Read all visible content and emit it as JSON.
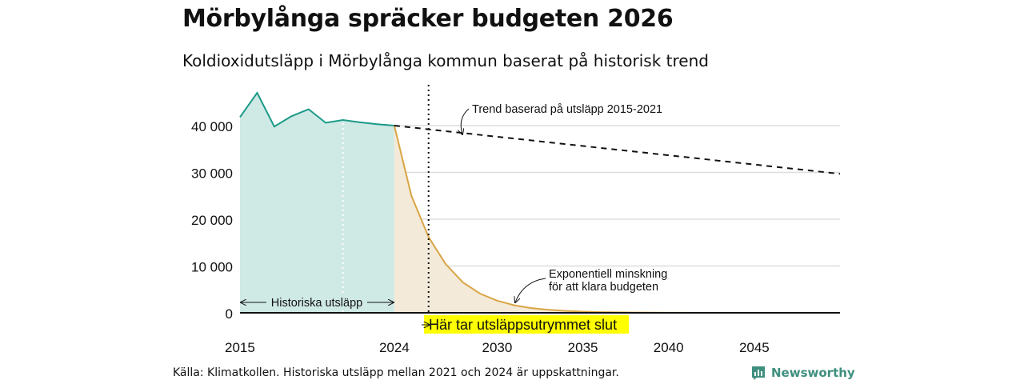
{
  "header": {
    "title": "Mörbylånga spräcker budgeten 2026",
    "subtitle": "Koldioxidutsläpp i Mörbylånga kommun baserat på historisk trend"
  },
  "footer": {
    "source": "Källa: Klimatkollen. Historiska utsläpp mellan 2021 och 2024 är uppskattningar.",
    "brand": "Newsworthy"
  },
  "colors": {
    "historical_line": "#1a9a87",
    "historical_fill": "#cfe9e5",
    "reduction_line": "#d9a544",
    "reduction_fill": "#f3ead9",
    "trend_line": "#111111",
    "highlight": "#ffff00",
    "grid": "#dddddd",
    "brand": "#3f8f7f"
  },
  "chart_data": {
    "type": "area",
    "x_range": [
      2015,
      2050
    ],
    "ylim": [
      0,
      45000
    ],
    "y_ticks": [
      0,
      10000,
      20000,
      30000,
      40000
    ],
    "y_tick_labels": [
      "0",
      "10 000",
      "20 000",
      "30 000",
      "40 000"
    ],
    "x_ticks": [
      2015,
      2024,
      2030,
      2035,
      2040,
      2045
    ],
    "x_tick_labels": [
      "2015",
      "2024",
      "2030",
      "2035",
      "2040",
      "2045"
    ],
    "grid": true,
    "series": [
      {
        "key": "historical",
        "x": [
          2015,
          2016,
          2017,
          2018,
          2019,
          2020,
          2021,
          2022,
          2023,
          2024
        ],
        "y": [
          41800,
          47000,
          39800,
          42000,
          43500,
          40600,
          41200,
          40700,
          40300,
          40000
        ]
      },
      {
        "key": "reduction",
        "x": [
          2024,
          2025,
          2026,
          2027,
          2028,
          2029,
          2030,
          2031,
          2032,
          2033,
          2034,
          2035,
          2036,
          2037,
          2038,
          2039,
          2040,
          2041,
          2042,
          2043,
          2044,
          2045,
          2046,
          2047,
          2048,
          2049,
          2050
        ],
        "y": [
          40000,
          25000,
          16200,
          10400,
          6500,
          4100,
          2600,
          1600,
          1000,
          640,
          400,
          250,
          160,
          100,
          60,
          40,
          25,
          15,
          10,
          6,
          4,
          2,
          1,
          1,
          0,
          0,
          0
        ]
      },
      {
        "key": "trend",
        "x": [
          2024,
          2050
        ],
        "y": [
          40000,
          29700
        ]
      }
    ],
    "markers": {
      "dotted_year_light": 2021,
      "budget_exhausted_year": 2026
    },
    "annotations": {
      "trend": "Trend baserad på utsläpp 2015-2021",
      "exponential_line1": "Exponentiell minskning",
      "exponential_line2": "för att klara budgeten",
      "historical": "Historiska utsläpp",
      "budget_end": "Här tar utsläppsutrymmet slut"
    }
  }
}
